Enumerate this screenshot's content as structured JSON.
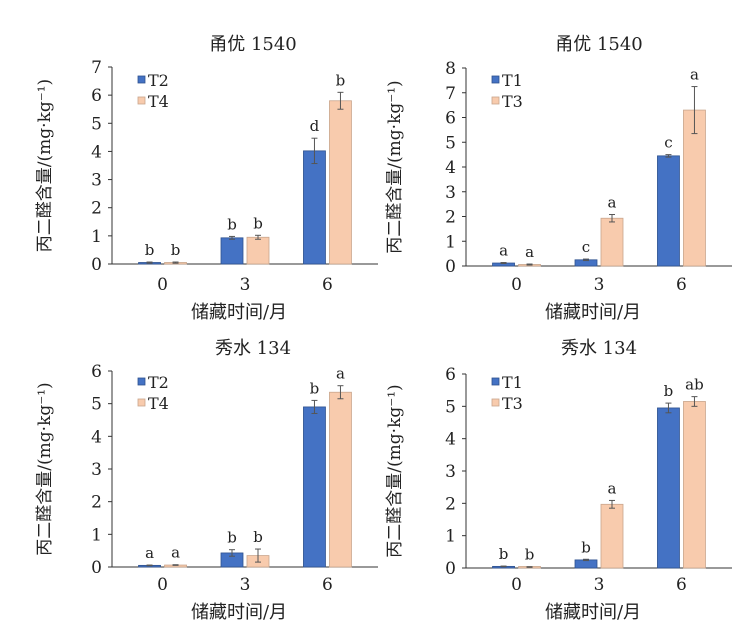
{
  "chart_data": [
    {
      "type": "bar",
      "title": "甬优 1540",
      "xlabel": "储藏时间/月",
      "ylabel": "丙二醛含量/(mg·kg⁻¹)",
      "categories": [
        "0",
        "3",
        "6"
      ],
      "ylim": [
        0,
        7
      ],
      "yticks": [
        "0",
        "1",
        "2",
        "3",
        "4",
        "5",
        "6",
        "7"
      ],
      "legend_position": "top-left",
      "series": [
        {
          "name": "T2",
          "color": "#4472C4",
          "values": [
            0.05,
            0.93,
            4.02
          ],
          "errors": [
            0.02,
            0.05,
            0.45
          ],
          "letters": [
            "b",
            "b",
            "d"
          ]
        },
        {
          "name": "T4",
          "color": "#F8CBAD",
          "values": [
            0.05,
            0.95,
            5.8
          ],
          "errors": [
            0.02,
            0.07,
            0.3
          ],
          "letters": [
            "b",
            "b",
            "b"
          ]
        }
      ]
    },
    {
      "type": "bar",
      "title": "甬优 1540",
      "xlabel": "储藏时间/月",
      "ylabel": "丙二醛含量/(mg·kg⁻¹)",
      "categories": [
        "0",
        "3",
        "6"
      ],
      "ylim": [
        0,
        8
      ],
      "yticks": [
        "0",
        "1",
        "2",
        "3",
        "4",
        "5",
        "6",
        "7",
        "8"
      ],
      "legend_position": "top-left",
      "series": [
        {
          "name": "T1",
          "color": "#4472C4",
          "values": [
            0.12,
            0.25,
            4.45
          ],
          "errors": [
            0.02,
            0.03,
            0.05
          ],
          "letters": [
            "a",
            "c",
            "c"
          ]
        },
        {
          "name": "T3",
          "color": "#F8CBAD",
          "values": [
            0.06,
            1.93,
            6.3
          ],
          "errors": [
            0.02,
            0.15,
            0.95
          ],
          "letters": [
            "a",
            "a",
            "a"
          ]
        }
      ]
    },
    {
      "type": "bar",
      "title": "秀水 134",
      "xlabel": "储藏时间/月",
      "ylabel": "丙二醛含量/(mg·kg⁻¹)",
      "categories": [
        "0",
        "3",
        "6"
      ],
      "ylim": [
        0,
        6
      ],
      "yticks": [
        "0",
        "1",
        "2",
        "3",
        "4",
        "5",
        "6"
      ],
      "legend_position": "top-left",
      "series": [
        {
          "name": "T2",
          "color": "#4472C4",
          "values": [
            0.05,
            0.43,
            4.9
          ],
          "errors": [
            0.01,
            0.1,
            0.2
          ],
          "letters": [
            "a",
            "b",
            "b"
          ]
        },
        {
          "name": "T4",
          "color": "#F8CBAD",
          "values": [
            0.06,
            0.35,
            5.35
          ],
          "errors": [
            0.01,
            0.2,
            0.2
          ],
          "letters": [
            "a",
            "b",
            "a"
          ]
        }
      ]
    },
    {
      "type": "bar",
      "title": "秀水 134",
      "xlabel": "储藏时间/月",
      "ylabel": "丙二醛含量/(mg·kg⁻¹)",
      "categories": [
        "0",
        "3",
        "6"
      ],
      "ylim": [
        0,
        6
      ],
      "yticks": [
        "0",
        "1",
        "2",
        "3",
        "4",
        "5",
        "6"
      ],
      "legend_position": "top-left",
      "series": [
        {
          "name": "T1",
          "color": "#4472C4",
          "values": [
            0.05,
            0.25,
            4.95
          ],
          "errors": [
            0.01,
            0.02,
            0.15
          ],
          "letters": [
            "b",
            "b",
            "b"
          ]
        },
        {
          "name": "T3",
          "color": "#F8CBAD",
          "values": [
            0.03,
            1.97,
            5.15
          ],
          "errors": [
            0.01,
            0.12,
            0.15
          ],
          "letters": [
            "b",
            "a",
            "ab"
          ]
        }
      ]
    }
  ]
}
